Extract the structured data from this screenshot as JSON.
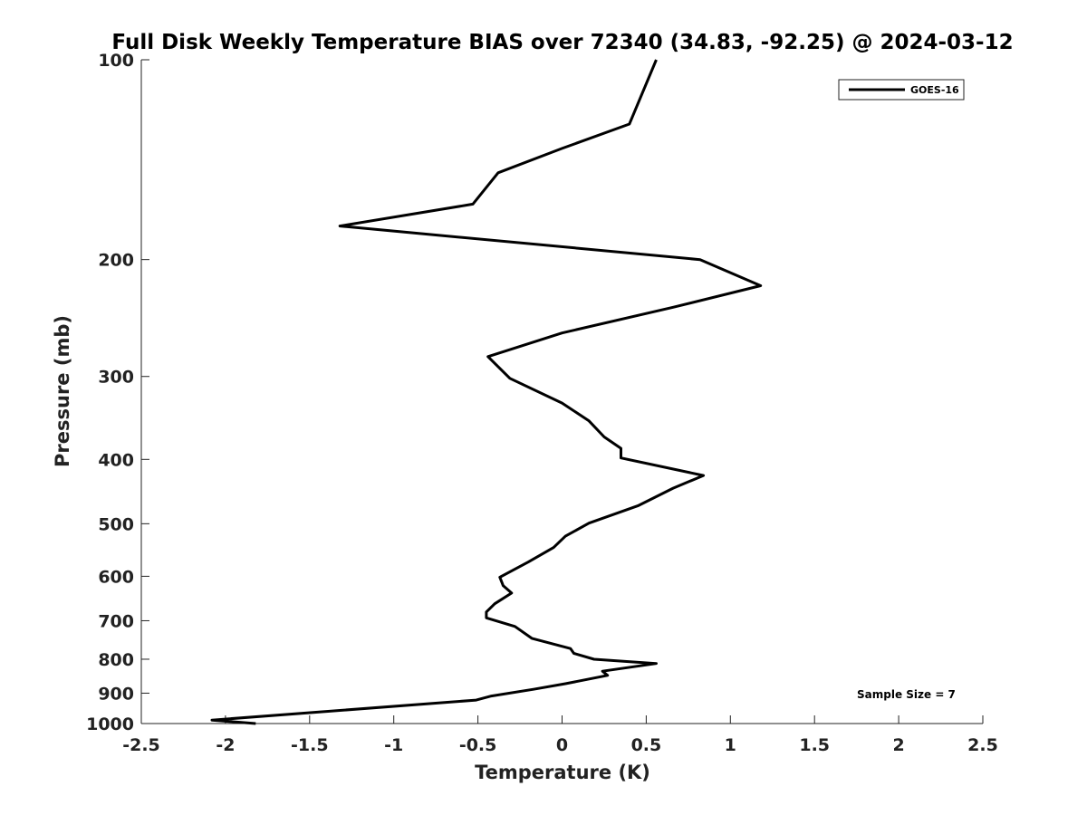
{
  "chart_data": {
    "type": "line",
    "title": "Full Disk Weekly Temperature BIAS over 72340 (34.83, -92.25) @ 2024-03-12",
    "xlabel": "Temperature (K)",
    "ylabel": "Pressure (mb)",
    "xlim": [
      -2.5,
      2.5
    ],
    "ylim": [
      100,
      1000
    ],
    "y_scale": "log",
    "y_reversed": true,
    "grid": false,
    "legend_position": "top-right",
    "x_ticks": [
      -2.5,
      -2,
      -1.5,
      -1,
      -0.5,
      0,
      0.5,
      1,
      1.5,
      2,
      2.5
    ],
    "x_tick_labels": [
      "-2.5",
      "-2",
      "-1.5",
      "-1",
      "-0.5",
      "0",
      "0.5",
      "1",
      "1.5",
      "2",
      "2.5"
    ],
    "y_ticks": [
      100,
      200,
      300,
      400,
      500,
      600,
      700,
      800,
      900,
      1000
    ],
    "y_tick_labels": [
      "100",
      "200",
      "300",
      "400",
      "500",
      "600",
      "700",
      "800",
      "900",
      "1000"
    ],
    "series": [
      {
        "name": "GOES-16",
        "color": "#000000",
        "points": [
          {
            "x": 0.56,
            "y": 100
          },
          {
            "x": 0.4,
            "y": 125
          },
          {
            "x": 0.0,
            "y": 136
          },
          {
            "x": -0.38,
            "y": 148
          },
          {
            "x": -0.53,
            "y": 165
          },
          {
            "x": -1.32,
            "y": 178
          },
          {
            "x": 0.82,
            "y": 200
          },
          {
            "x": 1.18,
            "y": 219
          },
          {
            "x": 0.66,
            "y": 236
          },
          {
            "x": 0.0,
            "y": 258
          },
          {
            "x": -0.44,
            "y": 280
          },
          {
            "x": -0.31,
            "y": 302
          },
          {
            "x": 0.0,
            "y": 329
          },
          {
            "x": 0.16,
            "y": 350
          },
          {
            "x": 0.25,
            "y": 370
          },
          {
            "x": 0.35,
            "y": 385
          },
          {
            "x": 0.35,
            "y": 398
          },
          {
            "x": 0.84,
            "y": 423
          },
          {
            "x": 0.66,
            "y": 442
          },
          {
            "x": 0.45,
            "y": 470
          },
          {
            "x": 0.16,
            "y": 499
          },
          {
            "x": 0.02,
            "y": 522
          },
          {
            "x": -0.05,
            "y": 543
          },
          {
            "x": -0.2,
            "y": 571
          },
          {
            "x": -0.37,
            "y": 602
          },
          {
            "x": -0.35,
            "y": 620
          },
          {
            "x": -0.3,
            "y": 636
          },
          {
            "x": -0.4,
            "y": 660
          },
          {
            "x": -0.45,
            "y": 679
          },
          {
            "x": -0.45,
            "y": 693
          },
          {
            "x": -0.28,
            "y": 714
          },
          {
            "x": -0.18,
            "y": 744
          },
          {
            "x": 0.05,
            "y": 771
          },
          {
            "x": 0.07,
            "y": 784
          },
          {
            "x": 0.19,
            "y": 800
          },
          {
            "x": 0.56,
            "y": 812
          },
          {
            "x": 0.24,
            "y": 834
          },
          {
            "x": 0.27,
            "y": 846
          },
          {
            "x": 0.02,
            "y": 871
          },
          {
            "x": -0.17,
            "y": 888
          },
          {
            "x": -0.42,
            "y": 909
          },
          {
            "x": -0.51,
            "y": 922
          },
          {
            "x": -2.08,
            "y": 988
          },
          {
            "x": -1.82,
            "y": 1000
          }
        ]
      }
    ],
    "annotations": [
      {
        "text": "Sample Size = 7",
        "x": 1.5,
        "y": 900
      }
    ]
  }
}
